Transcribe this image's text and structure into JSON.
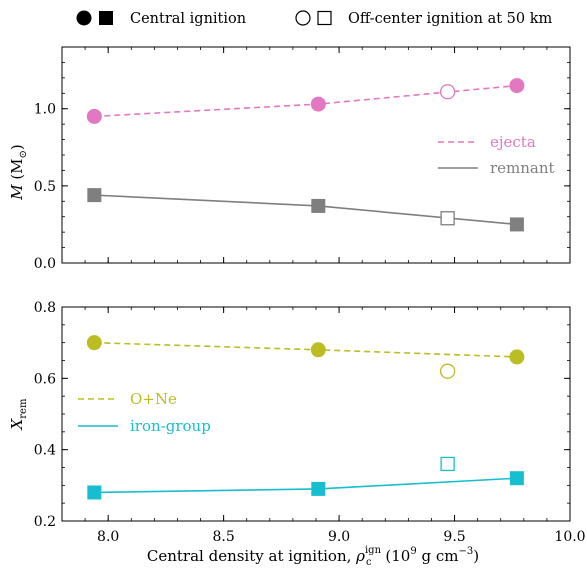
{
  "legend_top": {
    "central": "Central ignition",
    "offcenter": "Off-center ignition at 50 km"
  },
  "panel_top": {
    "ylabel_main": "M",
    "ylabel_paren_open": " (M",
    "ylabel_sub": "⊙",
    "ylabel_paren_close": ")",
    "legend_ejecta": "ejecta",
    "legend_remnant": "remnant"
  },
  "panel_bottom": {
    "ylabel_main": "X",
    "ylabel_sub": "rem",
    "legend_one": "O+Ne",
    "legend_iron": "iron-group"
  },
  "xlabel": {
    "prefix": "Central density at ignition, ",
    "rho": "ρ",
    "sup": "ign",
    "sub": "c",
    "suffix_open": " (10",
    "exp9": "9",
    "mid": " g cm",
    "exp": "−3",
    "close": ")"
  },
  "colors": {
    "ejecta": "#e377c2",
    "remnant": "#7f7f7f",
    "one": "#bcbd22",
    "iron": "#17becf"
  },
  "chart_data": [
    {
      "type": "line",
      "xlim": [
        7.8,
        10.0
      ],
      "ylim": [
        0.0,
        1.4
      ],
      "xticks": [
        "8.0",
        "8.5",
        "9.0",
        "9.5",
        "10.0"
      ],
      "yticks": [
        "0.0",
        "0.5",
        "1.0"
      ],
      "series": [
        {
          "name": "ejecta",
          "x": [
            7.94,
            8.91,
            9.77
          ],
          "y": [
            0.95,
            1.03,
            1.15
          ]
        },
        {
          "name": "remnant",
          "x": [
            7.94,
            8.91,
            9.77
          ],
          "y": [
            0.44,
            0.37,
            0.25
          ]
        }
      ],
      "offcenter_points": [
        {
          "series": "ejecta",
          "x": 9.47,
          "y": 1.11
        },
        {
          "series": "remnant",
          "x": 9.47,
          "y": 0.29
        }
      ]
    },
    {
      "type": "line",
      "xlim": [
        7.8,
        10.0
      ],
      "ylim": [
        0.2,
        0.8
      ],
      "xticks": [
        "8.0",
        "8.5",
        "9.0",
        "9.5",
        "10.0"
      ],
      "yticks": [
        "0.2",
        "0.4",
        "0.6",
        "0.8"
      ],
      "series": [
        {
          "name": "O+Ne",
          "x": [
            7.94,
            8.91,
            9.77
          ],
          "y": [
            0.7,
            0.68,
            0.66
          ]
        },
        {
          "name": "iron-group",
          "x": [
            7.94,
            8.91,
            9.77
          ],
          "y": [
            0.28,
            0.29,
            0.32
          ]
        }
      ],
      "offcenter_points": [
        {
          "series": "O+Ne",
          "x": 9.47,
          "y": 0.62
        },
        {
          "series": "iron-group",
          "x": 9.47,
          "y": 0.36
        }
      ]
    }
  ]
}
